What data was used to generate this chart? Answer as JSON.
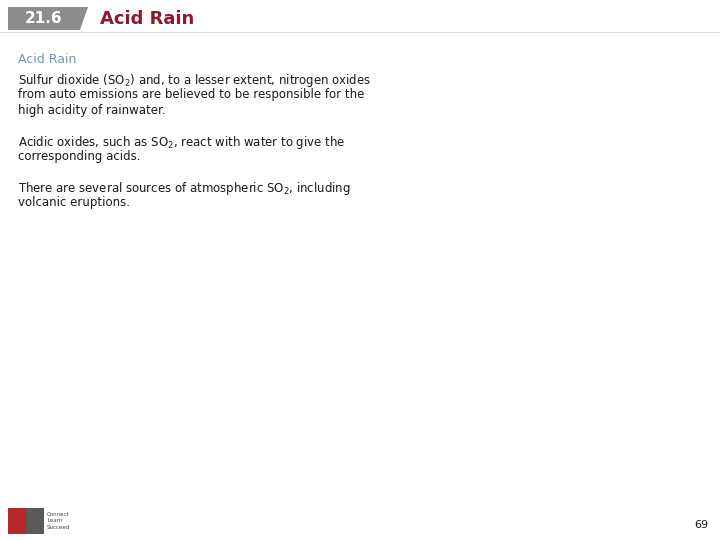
{
  "section_number": "21.6",
  "section_title": "Acid Rain",
  "header_bg_color": "#8c8c8c",
  "header_text_color": "#ffffff",
  "header_title_color": "#8b1a2e",
  "title_color": "#6b9bbf",
  "body_text_color": "#1a1a1a",
  "background_color": "#ffffff",
  "slide_title": "Acid Rain",
  "page_number": "69",
  "font_size_header_num": 11,
  "font_size_header_title": 13,
  "font_size_slide_title": 9,
  "font_size_body": 8.5
}
